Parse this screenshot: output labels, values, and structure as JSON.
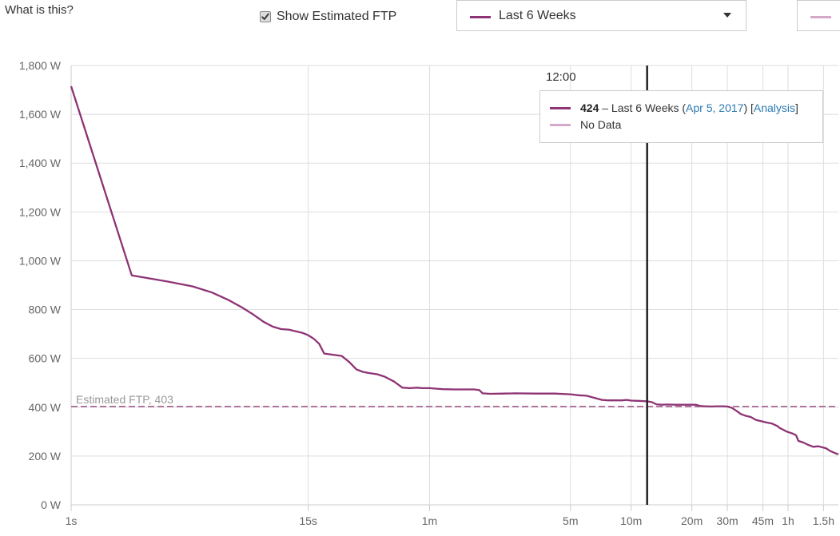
{
  "header": {
    "what_is_this": "What is this?",
    "show_ftp_label": "Show Estimated FTP",
    "show_ftp_checked": true,
    "range_label": "Last 6 Weeks"
  },
  "colors": {
    "series_primary": "#8e3374",
    "series_compare": "#d6a8c8",
    "ftp_line": "#8e3374",
    "grid": "#dddddd",
    "hover_line": "#222222",
    "link": "#2a7ab0"
  },
  "tooltip": {
    "time": "12:00",
    "value": "424",
    "dash": " – Last 6 Weeks (",
    "date": "Apr 5, 2017",
    "mid": ") [",
    "analysis": "Analysis",
    "end": "]",
    "no_data": "No Data"
  },
  "chart_data": {
    "type": "line",
    "x_scale": "log",
    "x_unit": "seconds",
    "x_ticks": [
      {
        "value": 1,
        "label": "1s"
      },
      {
        "value": 15,
        "label": "15s"
      },
      {
        "value": 60,
        "label": "1m"
      },
      {
        "value": 300,
        "label": "5m"
      },
      {
        "value": 600,
        "label": "10m"
      },
      {
        "value": 1200,
        "label": "20m"
      },
      {
        "value": 1800,
        "label": "30m"
      },
      {
        "value": 2700,
        "label": "45m"
      },
      {
        "value": 3600,
        "label": "1h"
      },
      {
        "value": 5400,
        "label": "1.5h"
      }
    ],
    "x_range": [
      1,
      6400
    ],
    "y_range": [
      0,
      1800
    ],
    "y_ticks": [
      {
        "value": 0,
        "label": "0 W"
      },
      {
        "value": 200,
        "label": "200 W"
      },
      {
        "value": 400,
        "label": "400 W"
      },
      {
        "value": 600,
        "label": "600 W"
      },
      {
        "value": 800,
        "label": "800 W"
      },
      {
        "value": 1000,
        "label": "1,000 W"
      },
      {
        "value": 1200,
        "label": "1,200 W"
      },
      {
        "value": 1400,
        "label": "1,400 W"
      },
      {
        "value": 1600,
        "label": "1,600 W"
      },
      {
        "value": 1800,
        "label": "1,800 W"
      }
    ],
    "grid": true,
    "series": [
      {
        "name": "Last 6 Weeks",
        "points": [
          [
            1,
            1715
          ],
          [
            2,
            940
          ],
          [
            3,
            915
          ],
          [
            4,
            895
          ],
          [
            5,
            870
          ],
          [
            6,
            840
          ],
          [
            7,
            810
          ],
          [
            8,
            780
          ],
          [
            9,
            750
          ],
          [
            10,
            730
          ],
          [
            11,
            720
          ],
          [
            12,
            718
          ],
          [
            14,
            705
          ],
          [
            15,
            695
          ],
          [
            16,
            680
          ],
          [
            17,
            660
          ],
          [
            18,
            620
          ],
          [
            20,
            615
          ],
          [
            22,
            610
          ],
          [
            24,
            585
          ],
          [
            26,
            555
          ],
          [
            28,
            545
          ],
          [
            30,
            540
          ],
          [
            33,
            535
          ],
          [
            36,
            525
          ],
          [
            40,
            505
          ],
          [
            44,
            480
          ],
          [
            48,
            478
          ],
          [
            52,
            480
          ],
          [
            55,
            478
          ],
          [
            60,
            478
          ],
          [
            65,
            476
          ],
          [
            70,
            474
          ],
          [
            80,
            473
          ],
          [
            90,
            473
          ],
          [
            100,
            473
          ],
          [
            106,
            470
          ],
          [
            110,
            457
          ],
          [
            120,
            455
          ],
          [
            140,
            456
          ],
          [
            160,
            457
          ],
          [
            200,
            456
          ],
          [
            250,
            456
          ],
          [
            300,
            453
          ],
          [
            330,
            449
          ],
          [
            360,
            447
          ],
          [
            400,
            437
          ],
          [
            430,
            430
          ],
          [
            460,
            428
          ],
          [
            500,
            428
          ],
          [
            540,
            428
          ],
          [
            570,
            430
          ],
          [
            600,
            427
          ],
          [
            650,
            426
          ],
          [
            720,
            424
          ],
          [
            760,
            421
          ],
          [
            800,
            412
          ],
          [
            850,
            410
          ],
          [
            900,
            411
          ],
          [
            1000,
            410
          ],
          [
            1100,
            410
          ],
          [
            1200,
            410
          ],
          [
            1260,
            410
          ],
          [
            1320,
            405
          ],
          [
            1400,
            404
          ],
          [
            1500,
            403
          ],
          [
            1600,
            404
          ],
          [
            1700,
            404
          ],
          [
            1800,
            403
          ],
          [
            1900,
            397
          ],
          [
            2000,
            385
          ],
          [
            2100,
            372
          ],
          [
            2200,
            366
          ],
          [
            2350,
            360
          ],
          [
            2500,
            348
          ],
          [
            2650,
            343
          ],
          [
            2800,
            338
          ],
          [
            3000,
            333
          ],
          [
            3200,
            322
          ],
          [
            3250,
            316
          ],
          [
            3400,
            308
          ],
          [
            3550,
            300
          ],
          [
            3800,
            292
          ],
          [
            3950,
            285
          ],
          [
            4050,
            262
          ],
          [
            4300,
            255
          ],
          [
            4550,
            245
          ],
          [
            4800,
            238
          ],
          [
            5100,
            240
          ],
          [
            5300,
            236
          ],
          [
            5550,
            232
          ],
          [
            5850,
            220
          ],
          [
            6200,
            211
          ],
          [
            6400,
            207
          ]
        ]
      },
      {
        "name": "No Data",
        "points": []
      }
    ],
    "estimated_ftp": {
      "value": 403,
      "label": "Estimated FTP, 403"
    },
    "cursor_x": 720,
    "cursor_label": "12:00"
  }
}
